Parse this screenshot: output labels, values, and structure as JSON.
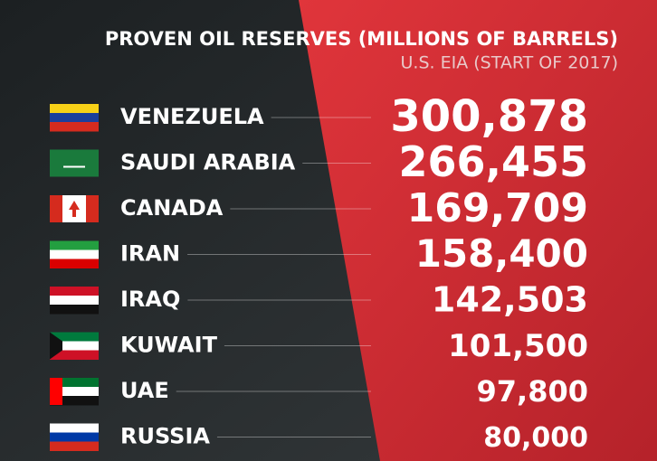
{
  "header": {
    "title": "PROVEN OIL RESERVES (MILLIONS OF BARRELS)",
    "subtitle": "U.S. EIA (START OF 2017)"
  },
  "rows": [
    {
      "country": "VENEZUELA",
      "value": "300,878"
    },
    {
      "country": "SAUDI ARABIA",
      "value": "266,455"
    },
    {
      "country": "CANADA",
      "value": "169,709"
    },
    {
      "country": "IRAN",
      "value": "158,400"
    },
    {
      "country": "IRAQ",
      "value": "142,503"
    },
    {
      "country": "KUWAIT",
      "value": "101,500"
    },
    {
      "country": "UAE",
      "value": "97,800"
    },
    {
      "country": "RUSSIA",
      "value": "80,000"
    }
  ]
}
